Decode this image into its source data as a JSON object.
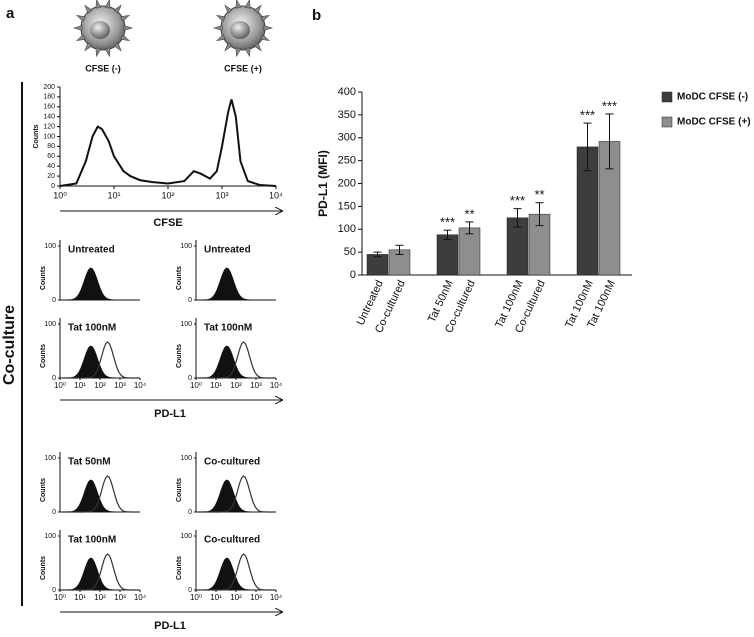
{
  "figure": {
    "panel_a_label": "a",
    "panel_b_label": "b",
    "cell_labels": [
      "CFSE (-)",
      "CFSE (+)"
    ],
    "side_label": "Co-culture",
    "small_ylabel": "Counts",
    "small_yticks": [
      0,
      100
    ],
    "small_xticks": [
      {
        "value": 1,
        "label": "10⁰"
      },
      {
        "value": 10,
        "label": "10¹"
      },
      {
        "value": 100,
        "label": "10²"
      },
      {
        "value": 1000,
        "label": "10³"
      },
      {
        "value": 10000,
        "label": "10⁴"
      }
    ],
    "pdl1_blocks": [
      {
        "xlabel": "PD-L1",
        "panels": [
          "Untreated",
          "Untreated",
          "Tat 100nM",
          "Tat 100nM"
        ]
      },
      {
        "xlabel": "PD-L1",
        "panels": [
          "Tat 50nM",
          "Co-cultured",
          "Tat 100nM",
          "Co-cultured"
        ]
      }
    ]
  },
  "chart_data": [
    {
      "type": "line",
      "xlabel": "CFSE",
      "ylabel": "Counts",
      "log_x": true,
      "color": "#111111",
      "x": [
        1,
        2,
        3,
        4,
        5,
        6,
        8,
        10,
        15,
        20,
        30,
        50,
        100,
        200,
        300,
        400,
        600,
        800,
        1000,
        1300,
        1500,
        1800,
        2200,
        3000,
        5000,
        10000
      ],
      "values": [
        0,
        5,
        50,
        100,
        120,
        115,
        90,
        60,
        30,
        20,
        12,
        8,
        5,
        10,
        30,
        25,
        15,
        30,
        80,
        150,
        175,
        140,
        50,
        10,
        2,
        0
      ],
      "xlim": [
        1,
        10000
      ],
      "ylim": [
        0,
        200
      ],
      "xticks": [
        {
          "value": 1,
          "label": "10⁰"
        },
        {
          "value": 10,
          "label": "10¹"
        },
        {
          "value": 100,
          "label": "10²"
        },
        {
          "value": 1000,
          "label": "10³"
        },
        {
          "value": 10000,
          "label": "10⁴"
        }
      ],
      "yticks": [
        0,
        20,
        40,
        60,
        80,
        100,
        120,
        140,
        160,
        180,
        200
      ]
    },
    {
      "type": "bar",
      "ylabel": "PD-L1 (MFI)",
      "categories": [
        "Untreated",
        "Co-cultured",
        "Tat 50nM",
        "Co-cultured",
        "Tat 100nM",
        "Co-cultured",
        "Tat 100nM",
        "Tat 100nM"
      ],
      "series": [
        {
          "name": "MoDC CFSE (-)",
          "color": "#3d3d3d",
          "values": [
            45,
            null,
            88,
            null,
            125,
            null,
            280,
            null
          ],
          "errors": [
            5,
            null,
            10,
            null,
            20,
            null,
            52,
            null
          ],
          "significance": [
            null,
            null,
            "***",
            null,
            "***",
            null,
            "***",
            null
          ]
        },
        {
          "name": "MoDC CFSE (+)",
          "color": "#8e8e8e",
          "values": [
            null,
            55,
            null,
            103,
            null,
            133,
            null,
            292
          ],
          "errors": [
            null,
            10,
            null,
            13,
            null,
            25,
            null,
            60
          ],
          "significance": [
            null,
            null,
            null,
            "**",
            null,
            "**",
            null,
            "***"
          ]
        }
      ],
      "ylim": [
        0,
        400
      ],
      "yticks": [
        0,
        50,
        100,
        150,
        200,
        250,
        300,
        350,
        400
      ],
      "legend": "right"
    }
  ]
}
